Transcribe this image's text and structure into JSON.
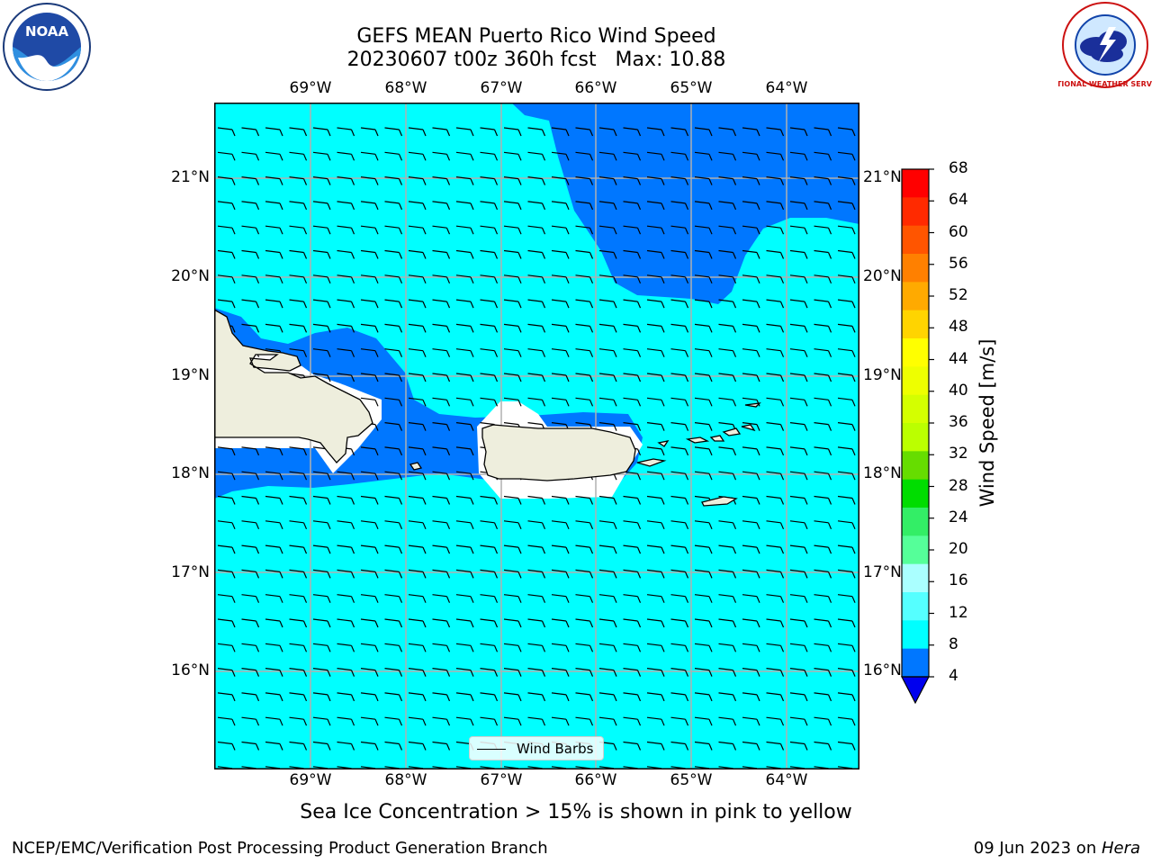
{
  "header": {
    "title_line1": "GEFS MEAN Puerto Rico Wind Speed",
    "title_line2": "20230607 t00z 360h fcst   Max: 10.88"
  },
  "map": {
    "lon_labels": [
      "69°W",
      "68°W",
      "67°W",
      "66°W",
      "65°W",
      "64°W"
    ],
    "lat_labels": [
      "21°N",
      "20°N",
      "19°N",
      "18°N",
      "17°N",
      "16°N"
    ],
    "legend_label": "Wind Barbs"
  },
  "colorbar": {
    "label": "Wind Speed [m/s]",
    "ticks": [
      "68",
      "64",
      "60",
      "56",
      "52",
      "48",
      "44",
      "40",
      "36",
      "32",
      "28",
      "24",
      "20",
      "16",
      "12",
      "8",
      "4"
    ],
    "colors": [
      "#ff0000",
      "#ff2a00",
      "#ff5500",
      "#ff8000",
      "#ffaa00",
      "#ffd400",
      "#ffff00",
      "#eeff00",
      "#d4ff00",
      "#bbff00",
      "#66dd00",
      "#00dd00",
      "#33ee66",
      "#55ff99",
      "#aaffff",
      "#55ffff",
      "#00ffff",
      "#0077ff"
    ],
    "extend_color": "#0000ee"
  },
  "subtitle": "Sea Ice Concentration > 15% is shown in pink to yellow",
  "footer": {
    "left": "NCEP/EMC/Verification Post Processing Product Generation Branch",
    "date": "09 Jun 2023 on ",
    "machine": "Hera"
  },
  "logos": {
    "left": "NOAA",
    "right": "NATIONAL WEATHER SERVICE"
  }
}
